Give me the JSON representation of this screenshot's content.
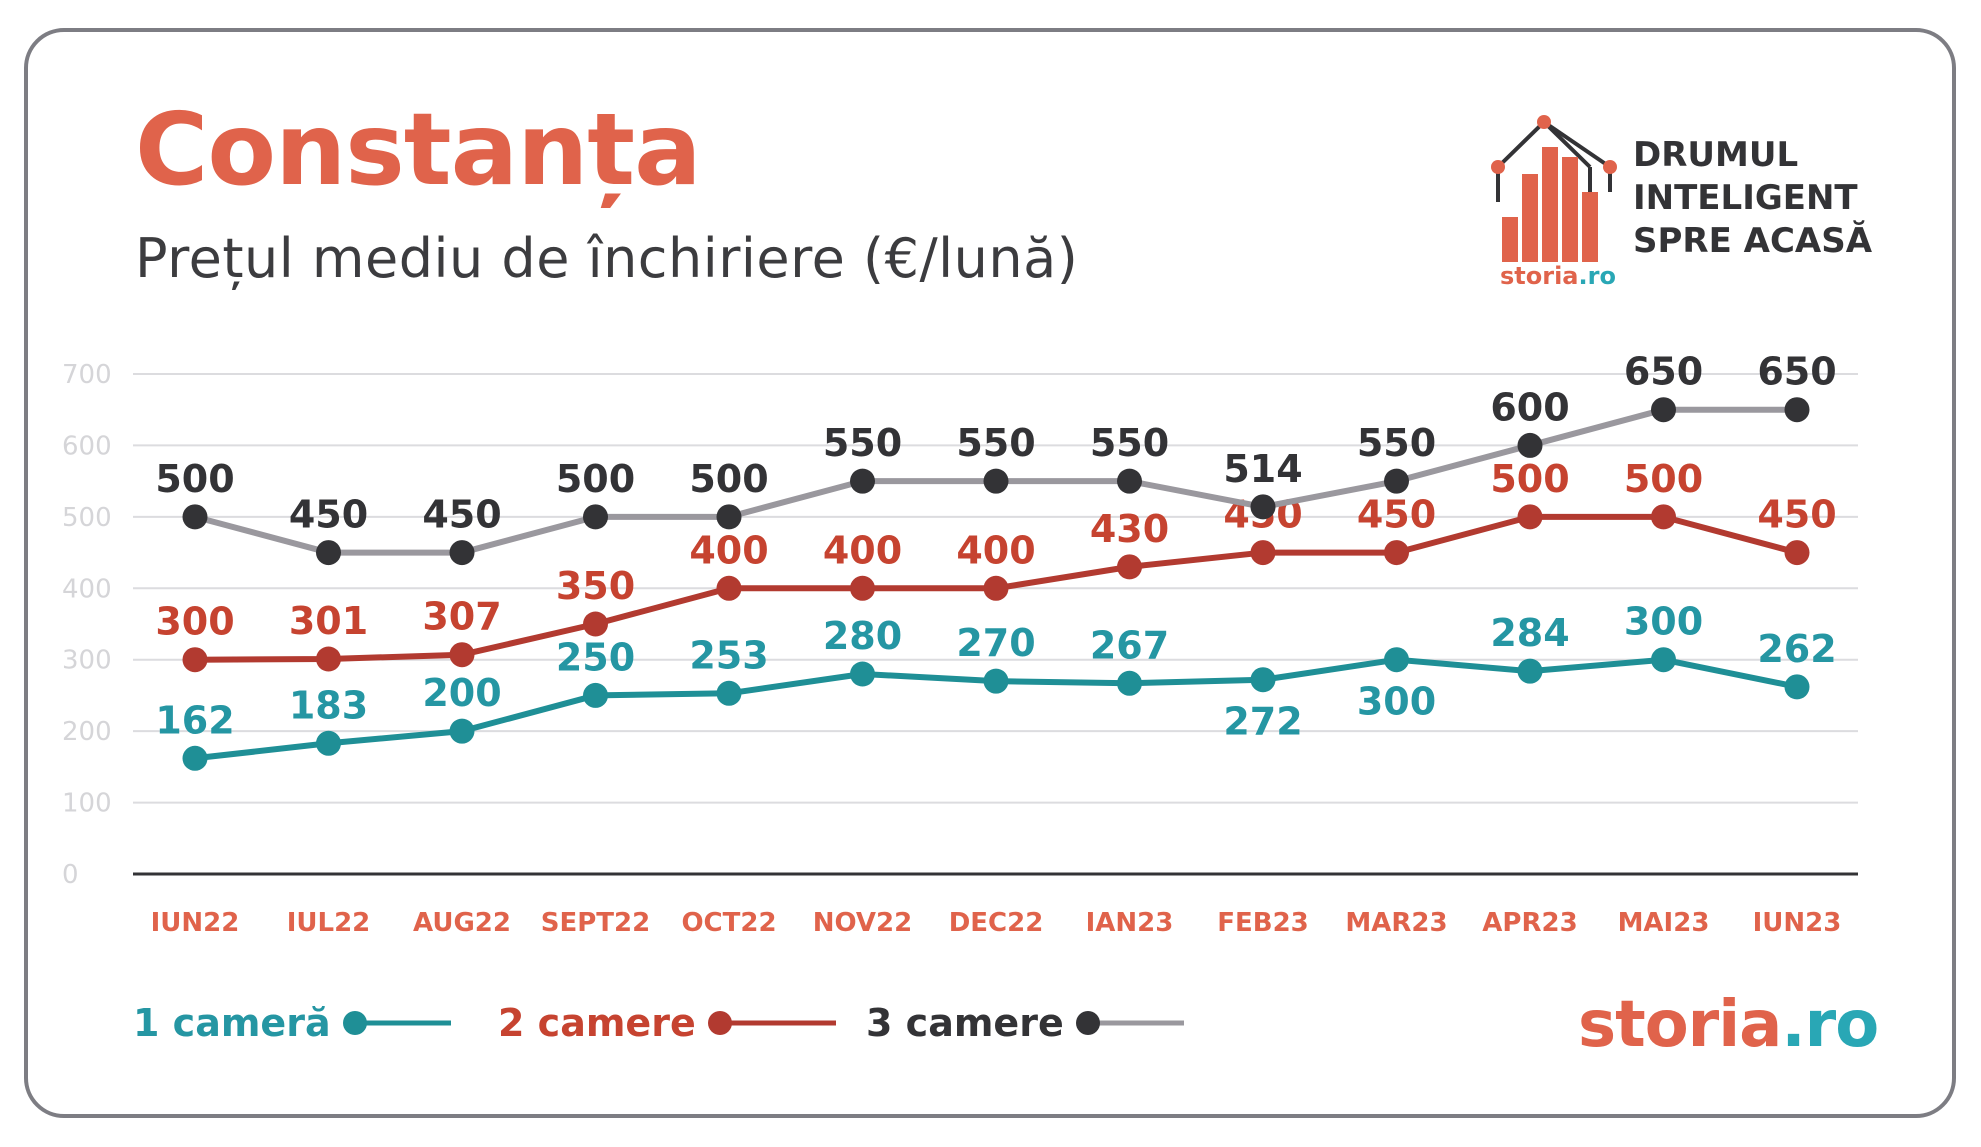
{
  "header": {
    "title": "Constanța",
    "subtitle": "Prețul mediu de închiriere (€/lună)"
  },
  "logo": {
    "line1": "DRUMUL",
    "line2": "INTELIGENT",
    "line3": "SPRE ACASĂ",
    "small_brand_1": "storia",
    "small_brand_2": ".ro"
  },
  "brand": {
    "part1": "storia",
    "part2": ".ro"
  },
  "colors": {
    "one_room": "#1f8f96",
    "one_room_label": "#2596a3",
    "two_rooms": "#b23a30",
    "two_rooms_label": "#c64330",
    "three_rooms_marker": "#333336",
    "three_rooms_line": "#9a989e",
    "axis_label": "#e0634b",
    "tick_label": "#d5d5d8",
    "grid": "#dcdcdf"
  },
  "chart_data": {
    "type": "line",
    "categories": [
      "IUN22",
      "IUL22",
      "AUG22",
      "SEPT22",
      "OCT22",
      "NOV22",
      "DEC22",
      "IAN23",
      "FEB23",
      "MAR23",
      "APR23",
      "MAI23",
      "IUN23"
    ],
    "ylim": [
      0,
      700
    ],
    "yticks": [
      0,
      100,
      200,
      300,
      400,
      500,
      600,
      700
    ],
    "grid": true,
    "legend_position": "bottom-left",
    "series": [
      {
        "name": "1 cameră",
        "key": "one",
        "values": [
          162,
          183,
          200,
          250,
          253,
          280,
          270,
          267,
          272,
          300,
          284,
          300,
          262
        ]
      },
      {
        "name": "2 camere",
        "key": "two",
        "values": [
          300,
          301,
          307,
          350,
          400,
          400,
          400,
          430,
          450,
          450,
          500,
          500,
          450
        ]
      },
      {
        "name": "3 camere",
        "key": "three",
        "values": [
          500,
          450,
          450,
          500,
          500,
          550,
          550,
          550,
          514,
          550,
          600,
          650,
          650
        ]
      }
    ]
  },
  "legend": {
    "one": "1 cameră",
    "two": "2 camere",
    "three": "3 camere"
  }
}
